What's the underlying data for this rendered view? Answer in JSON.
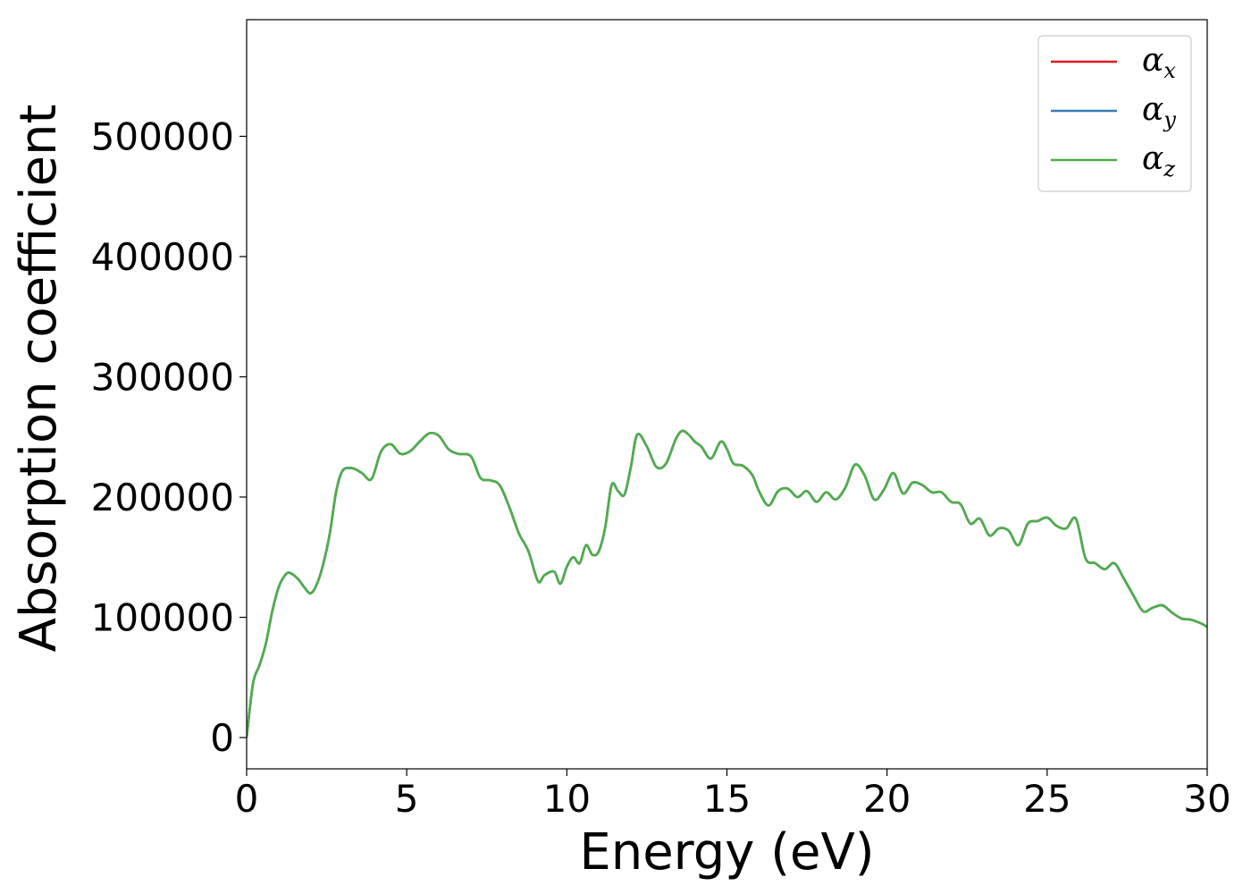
{
  "chart_data": {
    "type": "line",
    "title": "",
    "xlabel": "Energy (eV)",
    "ylabel": "Absorption coefficient",
    "xlim": [
      0,
      30
    ],
    "ylim": [
      -26000,
      597000
    ],
    "xticks": [
      0,
      5,
      10,
      15,
      20,
      25,
      30
    ],
    "yticks": [
      0,
      100000,
      200000,
      300000,
      400000,
      500000
    ],
    "grid": false,
    "legend_position": "top-right",
    "x": [
      0,
      0.2,
      0.4,
      0.6,
      0.8,
      1.0,
      1.2,
      1.35,
      1.6,
      1.8,
      2.0,
      2.2,
      2.4,
      2.6,
      2.8,
      3.0,
      3.3,
      3.6,
      3.9,
      4.2,
      4.5,
      4.8,
      5.1,
      5.4,
      5.7,
      6.0,
      6.3,
      6.6,
      7.0,
      7.3,
      7.6,
      7.9,
      8.2,
      8.5,
      8.8,
      9.1,
      9.3,
      9.6,
      9.8,
      10.0,
      10.2,
      10.4,
      10.6,
      10.8,
      11.0,
      11.2,
      11.4,
      11.6,
      11.8,
      12.0,
      12.2,
      12.5,
      12.8,
      13.1,
      13.4,
      13.6,
      13.8,
      14.0,
      14.2,
      14.5,
      14.8,
      15.0,
      15.2,
      15.5,
      15.8,
      16.0,
      16.3,
      16.6,
      16.9,
      17.2,
      17.5,
      17.8,
      18.1,
      18.4,
      18.7,
      19.0,
      19.3,
      19.6,
      19.9,
      20.2,
      20.5,
      20.8,
      21.1,
      21.4,
      21.7,
      22.0,
      22.3,
      22.6,
      22.9,
      23.2,
      23.5,
      23.8,
      24.1,
      24.4,
      24.7,
      25.0,
      25.3,
      25.6,
      25.9,
      26.2,
      26.5,
      26.8,
      27.1,
      27.4,
      27.7,
      28.0,
      28.3,
      28.6,
      28.9,
      29.2,
      29.5,
      29.8,
      30.0
    ],
    "series": [
      {
        "name": "α_x",
        "color": "#e41a1c",
        "values": [
          0,
          45000,
          60000,
          78000,
          105000,
          125000,
          135000,
          137000,
          132000,
          125000,
          120000,
          128000,
          145000,
          170000,
          205000,
          222000,
          224000,
          220000,
          215000,
          238000,
          244000,
          236000,
          238000,
          246000,
          253000,
          251000,
          240000,
          236000,
          234000,
          216000,
          214000,
          210000,
          192000,
          170000,
          155000,
          130000,
          135000,
          138000,
          128000,
          142000,
          150000,
          145000,
          160000,
          152000,
          155000,
          175000,
          210000,
          205000,
          202000,
          225000,
          252000,
          242000,
          225000,
          228000,
          248000,
          255000,
          252000,
          246000,
          242000,
          232000,
          246000,
          240000,
          228000,
          226000,
          218000,
          205000,
          193000,
          205000,
          207000,
          200000,
          205000,
          196000,
          204000,
          198000,
          208000,
          227000,
          218000,
          198000,
          206000,
          220000,
          203000,
          212000,
          210000,
          204000,
          204000,
          196000,
          194000,
          178000,
          182000,
          168000,
          174000,
          172000,
          160000,
          178000,
          180000,
          183000,
          176000,
          174000,
          182000,
          149000,
          145000,
          140000,
          145000,
          132000,
          118000,
          105000,
          108000,
          110000,
          104000,
          99000,
          98000,
          95000,
          92000
        ]
      },
      {
        "name": "α_y",
        "color": "#377eb8",
        "values": [
          0,
          45000,
          60000,
          78000,
          105000,
          125000,
          135000,
          137000,
          132000,
          125000,
          120000,
          128000,
          145000,
          170000,
          205000,
          222000,
          224000,
          220000,
          215000,
          238000,
          244000,
          236000,
          238000,
          246000,
          253000,
          251000,
          240000,
          236000,
          234000,
          216000,
          214000,
          210000,
          192000,
          170000,
          155000,
          130000,
          135000,
          138000,
          128000,
          142000,
          150000,
          145000,
          160000,
          152000,
          155000,
          175000,
          210000,
          205000,
          202000,
          225000,
          252000,
          242000,
          225000,
          228000,
          248000,
          255000,
          252000,
          246000,
          242000,
          232000,
          246000,
          240000,
          228000,
          226000,
          218000,
          205000,
          193000,
          205000,
          207000,
          200000,
          205000,
          196000,
          204000,
          198000,
          208000,
          227000,
          218000,
          198000,
          206000,
          220000,
          203000,
          212000,
          210000,
          204000,
          204000,
          196000,
          194000,
          178000,
          182000,
          168000,
          174000,
          172000,
          160000,
          178000,
          180000,
          183000,
          176000,
          174000,
          182000,
          149000,
          145000,
          140000,
          145000,
          132000,
          118000,
          105000,
          108000,
          110000,
          104000,
          99000,
          98000,
          95000,
          92000
        ]
      },
      {
        "name": "α_z",
        "color": "#4daf4a",
        "values": [
          0,
          45000,
          60000,
          78000,
          105000,
          125000,
          135000,
          137000,
          132000,
          125000,
          120000,
          128000,
          145000,
          170000,
          205000,
          222000,
          224000,
          220000,
          215000,
          238000,
          244000,
          236000,
          238000,
          246000,
          253000,
          251000,
          240000,
          236000,
          234000,
          216000,
          214000,
          210000,
          192000,
          170000,
          155000,
          130000,
          135000,
          138000,
          128000,
          142000,
          150000,
          145000,
          160000,
          152000,
          155000,
          175000,
          210000,
          205000,
          202000,
          225000,
          252000,
          242000,
          225000,
          228000,
          248000,
          255000,
          252000,
          246000,
          242000,
          232000,
          246000,
          240000,
          228000,
          226000,
          218000,
          205000,
          193000,
          205000,
          207000,
          200000,
          205000,
          196000,
          204000,
          198000,
          208000,
          227000,
          218000,
          198000,
          206000,
          220000,
          203000,
          212000,
          210000,
          204000,
          204000,
          196000,
          194000,
          178000,
          182000,
          168000,
          174000,
          172000,
          160000,
          178000,
          180000,
          183000,
          176000,
          174000,
          182000,
          149000,
          145000,
          140000,
          145000,
          132000,
          118000,
          105000,
          108000,
          110000,
          104000,
          99000,
          98000,
          95000,
          92000
        ]
      }
    ],
    "legend": [
      {
        "symbol": "α",
        "sub": "x"
      },
      {
        "symbol": "α",
        "sub": "y"
      },
      {
        "symbol": "α",
        "sub": "z"
      }
    ]
  }
}
